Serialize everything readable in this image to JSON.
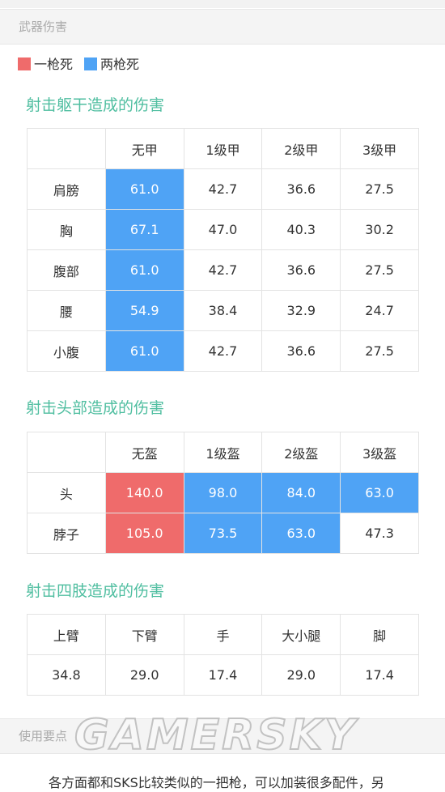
{
  "section_title": "武器伤害",
  "legend": [
    {
      "label": "一枪死",
      "color": "#ef6b6b"
    },
    {
      "label": "两枪死",
      "color": "#4fa3f5"
    }
  ],
  "tables": [
    {
      "heading": "射击躯干造成的伤害",
      "header": [
        "",
        "无甲",
        "1级甲",
        "2级甲",
        "3级甲"
      ],
      "rows": [
        [
          "肩膀",
          "61.0",
          "42.7",
          "36.6",
          "27.5"
        ],
        [
          "胸",
          "67.1",
          "47.0",
          "40.3",
          "30.2"
        ],
        [
          "腹部",
          "61.0",
          "42.7",
          "36.6",
          "27.5"
        ],
        [
          "腰",
          "54.9",
          "38.4",
          "32.9",
          "24.7"
        ],
        [
          "小腹",
          "61.0",
          "42.7",
          "36.6",
          "27.5"
        ]
      ],
      "highlight": [
        [
          null,
          1,
          null,
          null,
          null
        ],
        [
          null,
          1,
          null,
          null,
          null
        ],
        [
          null,
          1,
          null,
          null,
          null
        ],
        [
          null,
          1,
          null,
          null,
          null
        ],
        [
          null,
          1,
          null,
          null,
          null
        ]
      ]
    },
    {
      "heading": "射击头部造成的伤害",
      "header": [
        "",
        "无盔",
        "1级盔",
        "2级盔",
        "3级盔"
      ],
      "rows": [
        [
          "头",
          "140.0",
          "98.0",
          "84.0",
          "63.0"
        ],
        [
          "脖子",
          "105.0",
          "73.5",
          "63.0",
          "47.3"
        ]
      ],
      "highlight": [
        [
          null,
          0,
          1,
          1,
          1
        ],
        [
          null,
          0,
          1,
          1,
          null
        ]
      ]
    },
    {
      "heading": "射击四肢造成的伤害",
      "header": [
        "上臂",
        "下臂",
        "手",
        "大小腿",
        "脚"
      ],
      "rows": [
        [
          "34.8",
          "29.0",
          "17.4",
          "29.0",
          "17.4"
        ]
      ],
      "highlight": [
        [
          null,
          null,
          null,
          null,
          null
        ]
      ]
    }
  ],
  "section2_title": "使用要点",
  "paragraph": "各方面都和SKS比较类似的一把枪，可以加装很多配件，另",
  "watermark": "GAMERSKY"
}
